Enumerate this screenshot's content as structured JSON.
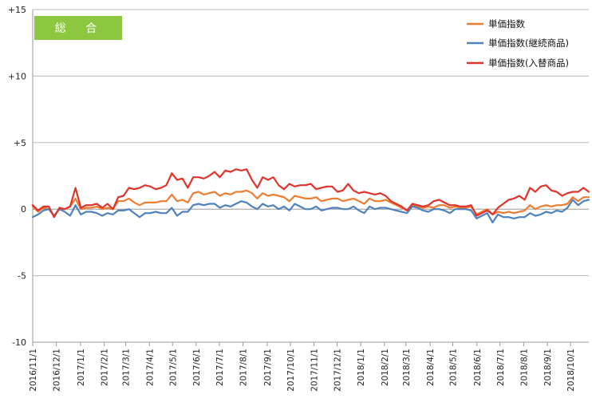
{
  "chart_data": {
    "type": "line",
    "title": "",
    "badge": "総 合",
    "ylim": [
      -10,
      15
    ],
    "yticks": [
      "+15",
      "+10",
      "+5",
      "0",
      "-5",
      "-10"
    ],
    "ytick_values": [
      15,
      10,
      5,
      0,
      -5,
      -10
    ],
    "grid": "horizontal-major",
    "legend_position": "top-right",
    "x_labels": [
      "2016/11/1",
      "2016/12/1",
      "2017/1/1",
      "2017/2/1",
      "2017/3/1",
      "2017/4/1",
      "2017/5/1",
      "2017/6/1",
      "2017/7/1",
      "2017/8/1",
      "2017/9/1",
      "2017/10/1",
      "2017/11/1",
      "2017/12/1",
      "2018/1/1",
      "2018/2/1",
      "2018/3/1",
      "2018/4/1",
      "2018/5/1",
      "2018/6/1",
      "2018/7/1",
      "2018/8/1",
      "2018/9/1",
      "2018/10/1"
    ],
    "x_label_weeks": [
      0,
      4.4,
      8.9,
      13.3,
      17.3,
      21.7,
      26.0,
      30.4,
      34.7,
      39.1,
      43.6,
      47.9,
      52.3,
      56.6,
      61.0,
      65.4,
      69.4,
      73.9,
      78.1,
      82.6,
      86.9,
      91.3,
      95.7,
      100.0
    ],
    "x_range_weeks": [
      0,
      103.4
    ],
    "series": [
      {
        "name": "単価指数",
        "color": "#ED7D31",
        "values": [
          0.2,
          -0.2,
          0.1,
          0.0,
          -0.5,
          0.0,
          0.0,
          0.2,
          0.8,
          0.0,
          0.1,
          0.1,
          0.2,
          0.0,
          0.1,
          0.0,
          0.6,
          0.6,
          0.8,
          0.5,
          0.3,
          0.5,
          0.5,
          0.5,
          0.6,
          0.6,
          1.1,
          0.6,
          0.7,
          0.5,
          1.2,
          1.3,
          1.1,
          1.2,
          1.3,
          1.0,
          1.2,
          1.1,
          1.3,
          1.3,
          1.4,
          1.2,
          0.8,
          1.2,
          1.0,
          1.1,
          1.0,
          0.9,
          0.6,
          1.0,
          0.9,
          0.8,
          0.8,
          0.9,
          0.6,
          0.7,
          0.8,
          0.8,
          0.6,
          0.7,
          0.8,
          0.6,
          0.4,
          0.8,
          0.6,
          0.6,
          0.7,
          0.5,
          0.3,
          0.1,
          -0.1,
          0.3,
          0.2,
          0.1,
          0.2,
          0.1,
          0.3,
          0.3,
          0.1,
          0.2,
          0.1,
          0.1,
          0.2,
          -0.4,
          -0.2,
          0.0,
          -0.4,
          -0.2,
          -0.3,
          -0.2,
          -0.3,
          -0.2,
          -0.1,
          0.3,
          0.0,
          0.2,
          0.3,
          0.2,
          0.3,
          0.3,
          0.4,
          0.9,
          0.6,
          0.9,
          0.9
        ]
      },
      {
        "name": "単価指数(継続商品)",
        "color": "#4F81BD",
        "values": [
          -0.6,
          -0.4,
          -0.1,
          0.0,
          -0.5,
          0.0,
          -0.2,
          -0.5,
          0.3,
          -0.4,
          -0.2,
          -0.2,
          -0.3,
          -0.5,
          -0.3,
          -0.4,
          -0.1,
          -0.1,
          0.0,
          -0.3,
          -0.6,
          -0.3,
          -0.3,
          -0.2,
          -0.3,
          -0.3,
          0.1,
          -0.5,
          -0.2,
          -0.2,
          0.3,
          0.4,
          0.3,
          0.4,
          0.4,
          0.1,
          0.3,
          0.2,
          0.4,
          0.6,
          0.5,
          0.2,
          0.0,
          0.4,
          0.2,
          0.3,
          0.0,
          0.2,
          -0.1,
          0.4,
          0.2,
          0.0,
          0.0,
          0.2,
          -0.1,
          0.0,
          0.1,
          0.1,
          0.0,
          0.0,
          0.2,
          -0.1,
          -0.3,
          0.2,
          0.0,
          0.1,
          0.1,
          0.0,
          -0.1,
          -0.2,
          -0.3,
          0.2,
          0.1,
          -0.1,
          -0.2,
          0.0,
          0.0,
          -0.1,
          -0.3,
          0.0,
          0.0,
          0.0,
          -0.1,
          -0.7,
          -0.5,
          -0.3,
          -1.0,
          -0.4,
          -0.6,
          -0.6,
          -0.7,
          -0.6,
          -0.6,
          -0.3,
          -0.5,
          -0.4,
          -0.2,
          -0.3,
          -0.1,
          -0.2,
          0.1,
          0.7,
          0.3,
          0.6,
          0.7
        ]
      },
      {
        "name": "単価指数(入替商品)",
        "color": "#E0342B",
        "values": [
          0.3,
          -0.1,
          0.2,
          0.2,
          -0.6,
          0.1,
          0.0,
          0.2,
          1.6,
          0.1,
          0.3,
          0.3,
          0.4,
          0.1,
          0.4,
          0.0,
          0.9,
          1.0,
          1.6,
          1.5,
          1.6,
          1.8,
          1.7,
          1.5,
          1.6,
          1.8,
          2.7,
          2.2,
          2.3,
          1.6,
          2.4,
          2.4,
          2.3,
          2.5,
          2.8,
          2.4,
          2.9,
          2.8,
          3.0,
          2.9,
          3.0,
          2.2,
          1.6,
          2.4,
          2.2,
          2.4,
          1.8,
          1.5,
          1.9,
          1.7,
          1.8,
          1.8,
          1.9,
          1.5,
          1.6,
          1.7,
          1.7,
          1.3,
          1.4,
          1.9,
          1.4,
          1.2,
          1.3,
          1.2,
          1.1,
          1.2,
          1.0,
          0.6,
          0.4,
          0.2,
          -0.1,
          0.4,
          0.3,
          0.2,
          0.3,
          0.6,
          0.7,
          0.5,
          0.3,
          0.3,
          0.2,
          0.2,
          0.3,
          -0.5,
          -0.3,
          -0.1,
          -0.4,
          0.1,
          0.4,
          0.7,
          0.8,
          1.0,
          0.7,
          1.6,
          1.3,
          1.7,
          1.8,
          1.4,
          1.3,
          1.0,
          1.2,
          1.3,
          1.3,
          1.6,
          1.3
        ]
      }
    ]
  }
}
